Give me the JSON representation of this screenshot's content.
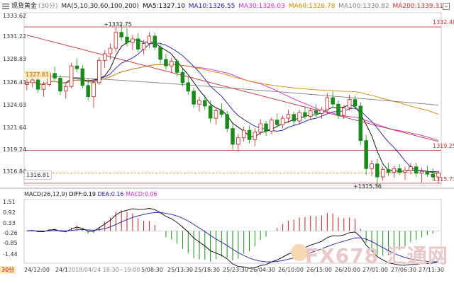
{
  "header": {
    "symbol": "现货黄金",
    "timeframe": "(30分)",
    "ma_params": "MA(5,10,30,60,100,200)",
    "ma5": "MA5:1327.10",
    "ma10": "MA10:1326.55",
    "ma30": "MA30:1326.03",
    "ma60": "MA60:1326.78",
    "ma100": "MA100:1330.82",
    "ma200": "MA200:1339.31"
  },
  "colors": {
    "ma5": "#000000",
    "ma10": "#1a1aaa",
    "ma30": "#d02ad0",
    "ma60": "#d08a00",
    "ma100": "#808080",
    "ma200": "#c03030",
    "up": "#c02020",
    "down": "#1a8a1a",
    "hline": "#c04040"
  },
  "price_axis": [
    "1333.62",
    "1331.22",
    "1328.83",
    "1326.43",
    "1324.03",
    "1321.64",
    "1319.24",
    "1316.84"
  ],
  "macd_axis": [
    "1.51",
    "0.92",
    "0.33",
    "-0.26",
    "-0.85",
    "-1.44"
  ],
  "macd_header": {
    "params": "MACD(26,12,9)",
    "diff": "DIFF:0.19",
    "dea": "DEA:0.16",
    "macd": "MACD:0.06"
  },
  "x_axis": [
    "24/12:00",
    "24/1",
    "2018/04/24 18:30~19:00",
    "5/08:30",
    "25/13:30",
    "25/18:30",
    "25/23:30",
    "26/04:30",
    "26/10:00",
    "26/15:00",
    "26/20:00",
    "27/01:00",
    "27/06:30",
    "27/11:30"
  ],
  "timeframe_badge": "30分",
  "annotations": {
    "high": "1332.75",
    "low": "1315.36",
    "left_badge_top": "1327.81",
    "left_badge_bottom": "1316.81",
    "right_top": "1332.48",
    "right_mid": "1319.25",
    "right_bottom": "1315.73"
  },
  "watermark": "FX678 汇通网",
  "chart_data": {
    "type": "candlestick",
    "ylim": [
      1315.5,
      1334.0
    ],
    "candles": [
      [
        1326.3,
        1326.9,
        1325.7,
        1326.5
      ],
      [
        1326.5,
        1327.2,
        1326.0,
        1326.8
      ],
      [
        1326.8,
        1327.0,
        1325.4,
        1325.8
      ],
      [
        1325.8,
        1326.6,
        1325.0,
        1326.3
      ],
      [
        1326.3,
        1327.8,
        1326.1,
        1327.5
      ],
      [
        1327.5,
        1328.2,
        1326.8,
        1327.0
      ],
      [
        1327.0,
        1327.3,
        1325.2,
        1325.6
      ],
      [
        1325.6,
        1326.4,
        1324.8,
        1326.1
      ],
      [
        1326.1,
        1328.6,
        1325.9,
        1328.3
      ],
      [
        1328.3,
        1329.1,
        1327.6,
        1328.0
      ],
      [
        1328.0,
        1328.4,
        1325.9,
        1326.2
      ],
      [
        1326.2,
        1327.0,
        1324.6,
        1325.0
      ],
      [
        1325.0,
        1326.8,
        1323.8,
        1326.5
      ],
      [
        1326.5,
        1329.2,
        1326.3,
        1328.9
      ],
      [
        1328.9,
        1330.0,
        1328.1,
        1329.6
      ],
      [
        1329.6,
        1330.7,
        1329.0,
        1330.2
      ],
      [
        1330.2,
        1332.4,
        1329.8,
        1331.9
      ],
      [
        1331.9,
        1332.75,
        1331.0,
        1331.4
      ],
      [
        1331.4,
        1332.3,
        1330.4,
        1330.8
      ],
      [
        1330.8,
        1331.6,
        1330.0,
        1331.2
      ],
      [
        1331.2,
        1331.8,
        1329.8,
        1330.1
      ],
      [
        1330.1,
        1331.1,
        1329.5,
        1330.7
      ],
      [
        1330.7,
        1331.9,
        1330.2,
        1331.5
      ],
      [
        1331.5,
        1331.9,
        1330.0,
        1330.3
      ],
      [
        1330.3,
        1330.8,
        1328.6,
        1329.0
      ],
      [
        1329.0,
        1329.6,
        1327.9,
        1328.3
      ],
      [
        1328.3,
        1329.2,
        1327.6,
        1328.8
      ],
      [
        1328.8,
        1329.1,
        1327.2,
        1327.6
      ],
      [
        1327.6,
        1328.0,
        1326.1,
        1326.5
      ],
      [
        1326.5,
        1327.1,
        1325.2,
        1325.6
      ],
      [
        1325.6,
        1326.0,
        1323.8,
        1324.2
      ],
      [
        1324.2,
        1325.0,
        1323.4,
        1324.6
      ],
      [
        1324.6,
        1325.2,
        1323.6,
        1324.0
      ],
      [
        1324.0,
        1324.6,
        1322.2,
        1322.7
      ],
      [
        1322.7,
        1323.9,
        1322.0,
        1323.5
      ],
      [
        1323.5,
        1324.3,
        1322.8,
        1323.1
      ],
      [
        1323.1,
        1323.5,
        1321.2,
        1321.6
      ],
      [
        1321.6,
        1322.1,
        1319.3,
        1319.9
      ],
      [
        1319.9,
        1321.0,
        1319.1,
        1320.6
      ],
      [
        1320.6,
        1321.8,
        1320.2,
        1321.4
      ],
      [
        1321.4,
        1321.9,
        1320.0,
        1320.4
      ],
      [
        1320.4,
        1321.6,
        1319.7,
        1321.2
      ],
      [
        1321.2,
        1322.6,
        1320.9,
        1322.1
      ],
      [
        1322.1,
        1322.4,
        1320.8,
        1321.3
      ],
      [
        1321.3,
        1322.8,
        1321.0,
        1322.5
      ],
      [
        1322.5,
        1323.2,
        1321.7,
        1322.0
      ],
      [
        1322.0,
        1323.0,
        1321.6,
        1322.7
      ],
      [
        1322.7,
        1323.6,
        1322.2,
        1323.1
      ],
      [
        1323.1,
        1323.4,
        1321.9,
        1322.4
      ],
      [
        1322.4,
        1323.6,
        1322.0,
        1323.3
      ],
      [
        1323.3,
        1324.0,
        1322.6,
        1322.9
      ],
      [
        1322.9,
        1323.8,
        1322.5,
        1323.5
      ],
      [
        1323.5,
        1324.2,
        1322.8,
        1323.2
      ],
      [
        1323.2,
        1323.9,
        1322.6,
        1323.6
      ],
      [
        1323.6,
        1325.4,
        1323.3,
        1324.9
      ],
      [
        1324.9,
        1325.6,
        1323.8,
        1324.2
      ],
      [
        1324.2,
        1324.6,
        1322.6,
        1323.0
      ],
      [
        1323.0,
        1324.1,
        1322.6,
        1323.8
      ],
      [
        1323.8,
        1325.2,
        1323.5,
        1324.7
      ],
      [
        1324.7,
        1325.1,
        1323.6,
        1324.0
      ],
      [
        1324.0,
        1324.4,
        1319.8,
        1320.3
      ],
      [
        1320.3,
        1320.9,
        1316.6,
        1317.3
      ],
      [
        1317.3,
        1318.2,
        1316.5,
        1317.8
      ],
      [
        1317.8,
        1318.3,
        1315.36,
        1316.4
      ],
      [
        1316.4,
        1317.5,
        1316.0,
        1317.2
      ],
      [
        1317.2,
        1317.9,
        1316.5,
        1316.9
      ],
      [
        1316.9,
        1317.6,
        1316.3,
        1317.3
      ],
      [
        1317.3,
        1317.8,
        1316.6,
        1316.9
      ],
      [
        1316.9,
        1317.5,
        1316.1,
        1317.1
      ],
      [
        1317.1,
        1317.9,
        1316.7,
        1317.5
      ],
      [
        1317.5,
        1317.9,
        1316.4,
        1316.8
      ],
      [
        1316.8,
        1317.4,
        1315.8,
        1317.0
      ],
      [
        1317.0,
        1317.6,
        1316.4,
        1316.7
      ],
      [
        1316.7,
        1317.3,
        1316.0,
        1316.4
      ],
      [
        1316.4,
        1317.1,
        1315.7,
        1316.81
      ]
    ],
    "macd_range": [
      -1.75,
      1.7
    ]
  }
}
